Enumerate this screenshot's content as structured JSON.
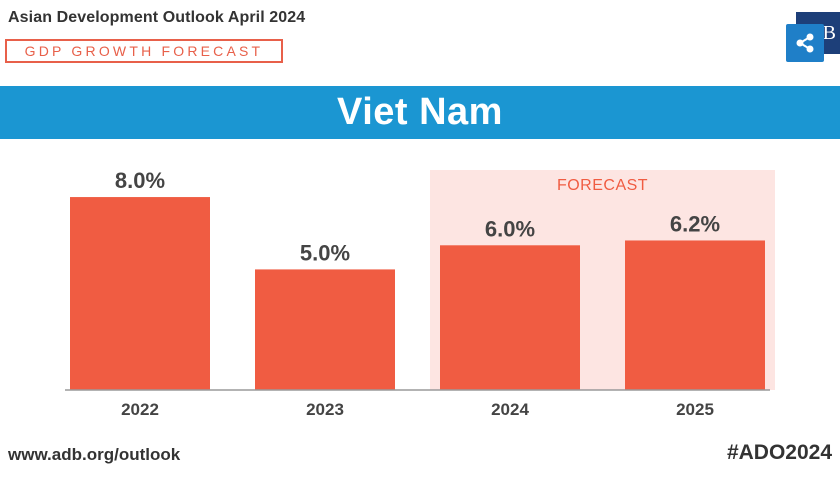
{
  "header": {
    "publication": "Asian Development Outlook April 2024",
    "subtitle": "GDP GROWTH FORECAST"
  },
  "share": {
    "letter": "B",
    "icon": "share-icon"
  },
  "banner": {
    "country": "Viet Nam"
  },
  "chart_data": {
    "type": "bar",
    "categories": [
      "2022",
      "2023",
      "2024",
      "2025"
    ],
    "values": [
      8.0,
      5.0,
      6.0,
      6.2
    ],
    "value_labels": [
      "8.0%",
      "5.0%",
      "6.0%",
      "6.2%"
    ],
    "forecast_label": "FORECAST",
    "forecast_categories": [
      "2024",
      "2025"
    ],
    "ylim": [
      0,
      8.5
    ],
    "grid": false,
    "colors": {
      "bar": "#f05c42",
      "forecast_band": "#fde5e2",
      "axis": "#999999",
      "banner": "#1b96d2"
    }
  },
  "footer": {
    "url": "www.adb.org/outlook",
    "hashtag": "#ADO2024"
  }
}
